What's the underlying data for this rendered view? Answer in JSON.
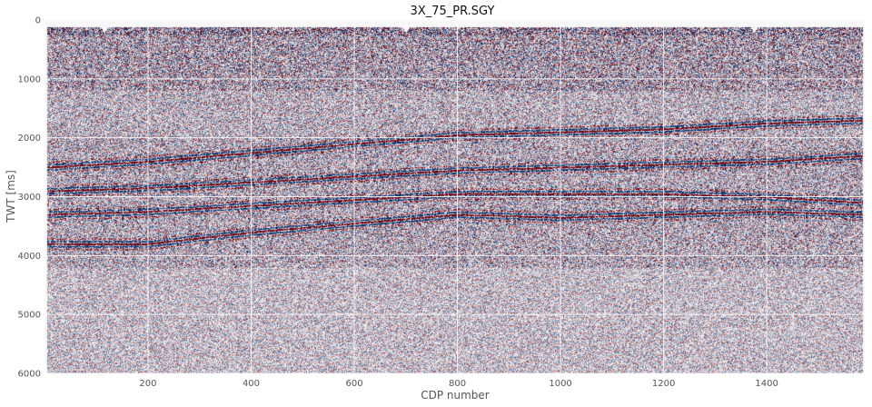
{
  "chart_data": {
    "type": "heatmap",
    "title": "3X_75_PR.SGY",
    "xlabel": "CDP number",
    "ylabel": "TWT [ms]",
    "xlim": [
      1,
      1590
    ],
    "ylim": [
      6000,
      0
    ],
    "x_ticks": [
      200,
      400,
      600,
      800,
      1000,
      1200,
      1400
    ],
    "y_ticks": [
      0,
      1000,
      2000,
      3000,
      4000,
      5000,
      6000
    ],
    "grid": true,
    "colormap": {
      "negative": "#08306b",
      "zero": "#f7f7f7",
      "positive": "#67000d"
    },
    "gap_traces": [
      115,
      700,
      1375
    ],
    "horizons": [
      {
        "x": [
          1,
          200,
          400,
          600,
          800,
          1000,
          1200,
          1400,
          1590
        ],
        "twt": [
          2500,
          2400,
          2250,
          2100,
          1950,
          1900,
          1850,
          1750,
          1700
        ]
      },
      {
        "x": [
          1,
          200,
          400,
          600,
          800,
          1000,
          1200,
          1400,
          1590
        ],
        "twt": [
          2900,
          2850,
          2750,
          2650,
          2550,
          2500,
          2450,
          2400,
          2300
        ]
      },
      {
        "x": [
          1,
          200,
          400,
          600,
          800,
          1000,
          1200,
          1400,
          1590
        ],
        "twt": [
          3300,
          3250,
          3150,
          3050,
          2950,
          2950,
          2950,
          3000,
          3100
        ]
      },
      {
        "x": [
          1,
          200,
          400,
          600,
          800,
          1000,
          1200,
          1400,
          1590
        ],
        "twt": [
          3800,
          3800,
          3600,
          3450,
          3300,
          3350,
          3300,
          3250,
          3300
        ]
      }
    ]
  }
}
